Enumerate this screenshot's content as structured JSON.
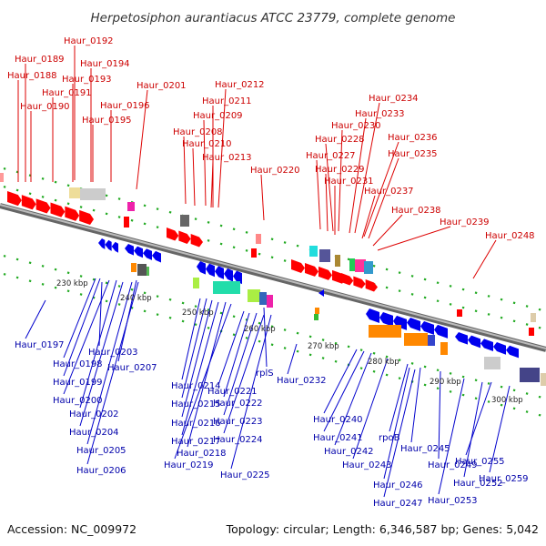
{
  "title": "Herpetosiphon aurantiacus ATCC 23779, complete genome",
  "footer": {
    "accession": "Accession: NC_009972",
    "summary": "Topology: circular; Length: 6,346,587 bp; Genes: 5,042"
  },
  "colors": {
    "forward_strand": "#ff0000",
    "reverse_strand": "#0000ee",
    "forward_label": "#cc0000",
    "reverse_label": "#0000aa",
    "backbone": "#888888",
    "ticks": "#22aa22"
  },
  "ticks": [
    "230 kbp",
    "240 kbp",
    "250 kbp",
    "260 kbp",
    "270 kbp",
    "280 kbp",
    "290 kbp",
    "300 kbp"
  ],
  "forward_genes": [
    "Haur_0192",
    "Haur_0189",
    "Haur_0194",
    "Haur_0188",
    "Haur_0193",
    "Haur_0191",
    "Haur_0190",
    "Haur_0196",
    "Haur_0195",
    "Haur_0201",
    "Haur_0212",
    "Haur_0211",
    "Haur_0209",
    "Haur_0208",
    "Haur_0210",
    "Haur_0213",
    "Haur_0220",
    "Haur_0234",
    "Haur_0233",
    "Haur_0230",
    "Haur_0228",
    "Haur_0236",
    "Haur_0227",
    "Haur_0235",
    "Haur_0229",
    "Haur_0231",
    "Haur_0237",
    "Haur_0238",
    "Haur_0239",
    "Haur_0248"
  ],
  "reverse_genes": [
    "Haur_0197",
    "Haur_0203",
    "Haur_0198",
    "Haur_0207",
    "Haur_0199",
    "Haur_0200",
    "Haur_0202",
    "Haur_0204",
    "Haur_0205",
    "Haur_0206",
    "Haur_0214",
    "Haur_0215",
    "Haur_0216",
    "Haur_0217",
    "Haur_0218",
    "Haur_0219",
    "rplS",
    "Haur_0221",
    "Haur_0222",
    "Haur_0223",
    "Haur_0224",
    "Haur_0225",
    "Haur_0232",
    "Haur_0240",
    "Haur_0241",
    "Haur_0242",
    "rpoB",
    "Haur_0243",
    "Haur_0245",
    "Haur_0249",
    "Haur_0246",
    "Haur_0247",
    "Haur_0252",
    "Haur_0253",
    "Haur_0255",
    "Haur_0259"
  ]
}
